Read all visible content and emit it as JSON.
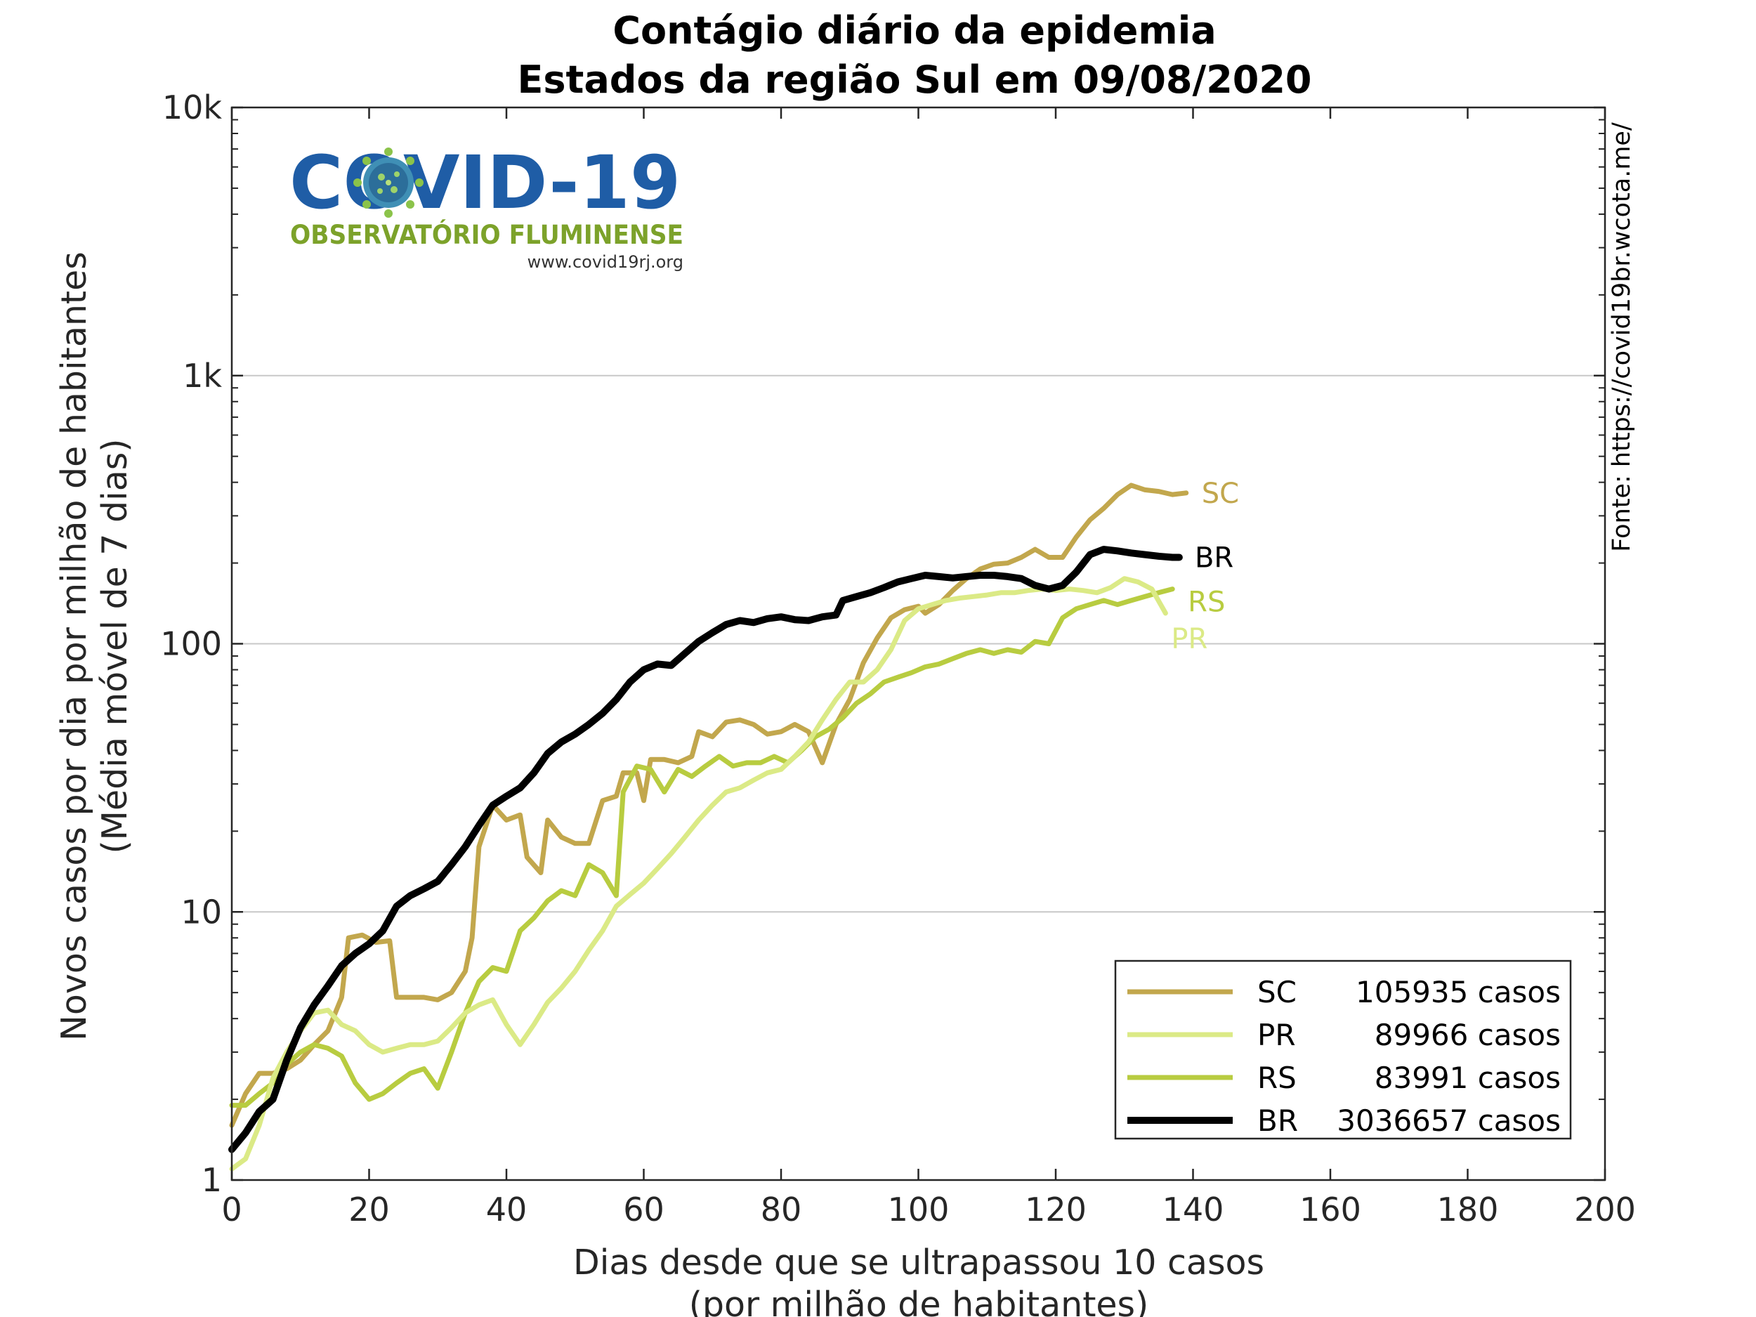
{
  "chart_data": {
    "type": "line",
    "title": "Contágio diário da epidemia",
    "subtitle": "Estados da região Sul em 09/08/2020",
    "xlabel": "Dias desde que se ultrapassou 10 casos",
    "xlabel2": "(por milhão de habitantes)",
    "ylabel": "Novos casos por dia por milhão de habitantes",
    "ylabel2": "(Média móvel de 7 dias)",
    "y_scale": "log",
    "xlim": [
      0,
      200
    ],
    "ylim": [
      1,
      10000
    ],
    "x_ticks": [
      0,
      20,
      40,
      60,
      80,
      100,
      120,
      140,
      160,
      180,
      200
    ],
    "x_tick_labels": [
      "0",
      "20",
      "40",
      "60",
      "80",
      "100",
      "120",
      "140",
      "160",
      "180",
      "200"
    ],
    "y_ticks": [
      1,
      10,
      100,
      1000,
      10000
    ],
    "y_tick_labels": [
      "1",
      "10",
      "100",
      "1k",
      "10k"
    ],
    "grid": "horizontal",
    "legend_position": "bottom-right",
    "source": "Fonte: https://covid19br.wcota.me/",
    "series": [
      {
        "name": "SC",
        "total_label": "105935 casos",
        "color": "#c2a74d",
        "width": 7,
        "points": [
          [
            0,
            1.6
          ],
          [
            2,
            2.1
          ],
          [
            4,
            2.5
          ],
          [
            6,
            2.5
          ],
          [
            8,
            2.6
          ],
          [
            10,
            2.8
          ],
          [
            12,
            3.2
          ],
          [
            14,
            3.6
          ],
          [
            16,
            4.8
          ],
          [
            17,
            8.0
          ],
          [
            19,
            8.2
          ],
          [
            21,
            7.7
          ],
          [
            23,
            7.8
          ],
          [
            24,
            4.8
          ],
          [
            26,
            4.8
          ],
          [
            28,
            4.8
          ],
          [
            30,
            4.7
          ],
          [
            32,
            5.0
          ],
          [
            34,
            6.0
          ],
          [
            35,
            8.0
          ],
          [
            36,
            17.5
          ],
          [
            38,
            25
          ],
          [
            40,
            22
          ],
          [
            42,
            23
          ],
          [
            43,
            16
          ],
          [
            45,
            14
          ],
          [
            46,
            22
          ],
          [
            48,
            19
          ],
          [
            50,
            18
          ],
          [
            52,
            18
          ],
          [
            54,
            26
          ],
          [
            56,
            27
          ],
          [
            57,
            33
          ],
          [
            59,
            33
          ],
          [
            60,
            26
          ],
          [
            61,
            37
          ],
          [
            63,
            37
          ],
          [
            65,
            36
          ],
          [
            67,
            38
          ],
          [
            68,
            47
          ],
          [
            70,
            45
          ],
          [
            72,
            51
          ],
          [
            74,
            52
          ],
          [
            76,
            50
          ],
          [
            78,
            46
          ],
          [
            80,
            47
          ],
          [
            82,
            50
          ],
          [
            84,
            47
          ],
          [
            86,
            36
          ],
          [
            88,
            50
          ],
          [
            90,
            62
          ],
          [
            92,
            85
          ],
          [
            94,
            105
          ],
          [
            96,
            125
          ],
          [
            98,
            134
          ],
          [
            100,
            138
          ],
          [
            101,
            130
          ],
          [
            103,
            140
          ],
          [
            105,
            158
          ],
          [
            107,
            175
          ],
          [
            109,
            190
          ],
          [
            111,
            198
          ],
          [
            113,
            200
          ],
          [
            115,
            210
          ],
          [
            117,
            225
          ],
          [
            119,
            210
          ],
          [
            121,
            210
          ],
          [
            123,
            250
          ],
          [
            125,
            290
          ],
          [
            127,
            320
          ],
          [
            129,
            360
          ],
          [
            131,
            390
          ],
          [
            133,
            375
          ],
          [
            135,
            370
          ],
          [
            137,
            360
          ],
          [
            139,
            365
          ]
        ]
      },
      {
        "name": "PR",
        "total_label": "89966 casos",
        "color": "#dbea86",
        "width": 7,
        "points": [
          [
            0,
            1.1
          ],
          [
            2,
            1.2
          ],
          [
            4,
            1.6
          ],
          [
            6,
            2.4
          ],
          [
            8,
            3.0
          ],
          [
            10,
            3.6
          ],
          [
            12,
            4.2
          ],
          [
            14,
            4.3
          ],
          [
            16,
            3.8
          ],
          [
            18,
            3.6
          ],
          [
            20,
            3.2
          ],
          [
            22,
            3.0
          ],
          [
            24,
            3.1
          ],
          [
            26,
            3.2
          ],
          [
            28,
            3.2
          ],
          [
            30,
            3.3
          ],
          [
            32,
            3.7
          ],
          [
            34,
            4.2
          ],
          [
            36,
            4.5
          ],
          [
            38,
            4.7
          ],
          [
            40,
            3.8
          ],
          [
            42,
            3.2
          ],
          [
            44,
            3.8
          ],
          [
            46,
            4.6
          ],
          [
            48,
            5.2
          ],
          [
            50,
            6.0
          ],
          [
            52,
            7.2
          ],
          [
            54,
            8.5
          ],
          [
            56,
            10.5
          ],
          [
            58,
            11.6
          ],
          [
            60,
            12.8
          ],
          [
            62,
            14.5
          ],
          [
            64,
            16.5
          ],
          [
            66,
            19
          ],
          [
            68,
            22
          ],
          [
            70,
            25
          ],
          [
            72,
            28
          ],
          [
            74,
            29
          ],
          [
            76,
            31
          ],
          [
            78,
            33
          ],
          [
            80,
            34
          ],
          [
            82,
            38
          ],
          [
            84,
            43
          ],
          [
            86,
            52
          ],
          [
            88,
            62
          ],
          [
            90,
            72
          ],
          [
            92,
            72
          ],
          [
            94,
            80
          ],
          [
            96,
            95
          ],
          [
            98,
            122
          ],
          [
            100,
            135
          ],
          [
            102,
            140
          ],
          [
            104,
            145
          ],
          [
            106,
            148
          ],
          [
            108,
            150
          ],
          [
            110,
            152
          ],
          [
            112,
            155
          ],
          [
            114,
            155
          ],
          [
            116,
            158
          ],
          [
            118,
            160
          ],
          [
            120,
            158
          ],
          [
            122,
            160
          ],
          [
            124,
            158
          ],
          [
            126,
            155
          ],
          [
            128,
            162
          ],
          [
            130,
            175
          ],
          [
            132,
            170
          ],
          [
            134,
            160
          ],
          [
            136,
            130
          ]
        ]
      },
      {
        "name": "RS",
        "total_label": "83991 casos",
        "color": "#b8cc40",
        "width": 7,
        "points": [
          [
            0,
            1.9
          ],
          [
            2,
            1.9
          ],
          [
            4,
            2.1
          ],
          [
            6,
            2.3
          ],
          [
            8,
            2.7
          ],
          [
            10,
            3.0
          ],
          [
            12,
            3.2
          ],
          [
            14,
            3.1
          ],
          [
            16,
            2.9
          ],
          [
            18,
            2.3
          ],
          [
            20,
            2.0
          ],
          [
            22,
            2.1
          ],
          [
            24,
            2.3
          ],
          [
            26,
            2.5
          ],
          [
            28,
            2.6
          ],
          [
            30,
            2.2
          ],
          [
            32,
            3.0
          ],
          [
            34,
            4.2
          ],
          [
            36,
            5.5
          ],
          [
            38,
            6.2
          ],
          [
            40,
            6.0
          ],
          [
            42,
            8.5
          ],
          [
            44,
            9.5
          ],
          [
            46,
            11
          ],
          [
            48,
            12
          ],
          [
            50,
            11.5
          ],
          [
            52,
            15
          ],
          [
            54,
            14
          ],
          [
            56,
            11.5
          ],
          [
            57,
            28
          ],
          [
            59,
            35
          ],
          [
            61,
            34
          ],
          [
            63,
            28
          ],
          [
            65,
            34
          ],
          [
            67,
            32
          ],
          [
            69,
            35
          ],
          [
            71,
            38
          ],
          [
            73,
            35
          ],
          [
            75,
            36
          ],
          [
            77,
            36
          ],
          [
            79,
            38
          ],
          [
            81,
            36
          ],
          [
            83,
            40
          ],
          [
            85,
            45
          ],
          [
            87,
            48
          ],
          [
            89,
            53
          ],
          [
            91,
            60
          ],
          [
            93,
            65
          ],
          [
            95,
            72
          ],
          [
            97,
            75
          ],
          [
            99,
            78
          ],
          [
            101,
            82
          ],
          [
            103,
            84
          ],
          [
            105,
            88
          ],
          [
            107,
            92
          ],
          [
            109,
            95
          ],
          [
            111,
            92
          ],
          [
            113,
            95
          ],
          [
            115,
            93
          ],
          [
            117,
            102
          ],
          [
            119,
            100
          ],
          [
            121,
            125
          ],
          [
            123,
            135
          ],
          [
            125,
            140
          ],
          [
            127,
            145
          ],
          [
            129,
            140
          ],
          [
            131,
            145
          ],
          [
            133,
            150
          ],
          [
            135,
            155
          ],
          [
            137,
            160
          ]
        ]
      },
      {
        "name": "BR",
        "total_label": "3036657 casos",
        "color": "#000000",
        "width": 10,
        "points": [
          [
            0,
            1.3
          ],
          [
            2,
            1.5
          ],
          [
            4,
            1.8
          ],
          [
            6,
            2.0
          ],
          [
            8,
            2.8
          ],
          [
            10,
            3.7
          ],
          [
            12,
            4.5
          ],
          [
            14,
            5.3
          ],
          [
            16,
            6.3
          ],
          [
            18,
            7.0
          ],
          [
            20,
            7.6
          ],
          [
            22,
            8.5
          ],
          [
            24,
            10.5
          ],
          [
            26,
            11.5
          ],
          [
            28,
            12.2
          ],
          [
            30,
            13.0
          ],
          [
            32,
            15.0
          ],
          [
            34,
            17.5
          ],
          [
            36,
            21
          ],
          [
            38,
            25
          ],
          [
            40,
            27
          ],
          [
            42,
            29
          ],
          [
            44,
            33
          ],
          [
            46,
            39
          ],
          [
            48,
            43
          ],
          [
            50,
            46
          ],
          [
            52,
            50
          ],
          [
            54,
            55
          ],
          [
            56,
            62
          ],
          [
            58,
            72
          ],
          [
            60,
            80
          ],
          [
            62,
            84
          ],
          [
            64,
            83
          ],
          [
            66,
            92
          ],
          [
            68,
            102
          ],
          [
            70,
            110
          ],
          [
            72,
            118
          ],
          [
            74,
            122
          ],
          [
            76,
            120
          ],
          [
            78,
            124
          ],
          [
            80,
            126
          ],
          [
            82,
            123
          ],
          [
            84,
            122
          ],
          [
            86,
            126
          ],
          [
            88,
            128
          ],
          [
            89,
            145
          ],
          [
            91,
            150
          ],
          [
            93,
            155
          ],
          [
            95,
            162
          ],
          [
            97,
            170
          ],
          [
            99,
            175
          ],
          [
            101,
            180
          ],
          [
            103,
            178
          ],
          [
            105,
            176
          ],
          [
            107,
            178
          ],
          [
            109,
            180
          ],
          [
            111,
            180
          ],
          [
            113,
            178
          ],
          [
            115,
            175
          ],
          [
            117,
            165
          ],
          [
            119,
            160
          ],
          [
            121,
            165
          ],
          [
            123,
            185
          ],
          [
            125,
            215
          ],
          [
            127,
            225
          ],
          [
            129,
            222
          ],
          [
            131,
            218
          ],
          [
            133,
            215
          ],
          [
            135,
            212
          ],
          [
            137,
            210
          ],
          [
            138,
            210
          ]
        ]
      }
    ]
  },
  "logo": {
    "title": "COVID-19",
    "subtitle": "OBSERVATÓRIO FLUMINENSE",
    "url": "www.covid19rj.org"
  }
}
